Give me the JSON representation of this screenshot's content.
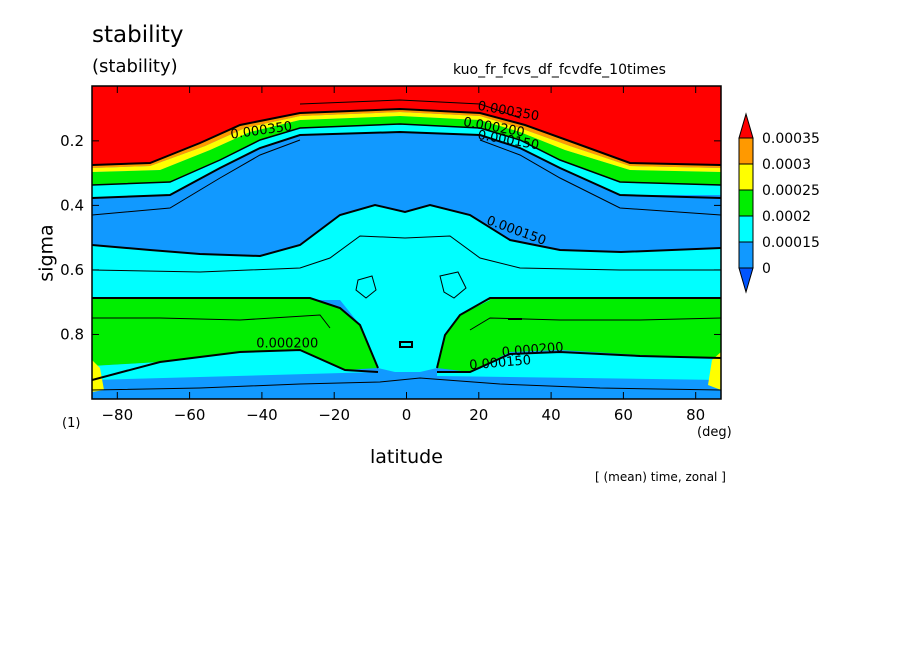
{
  "title": "stability",
  "subtitle": "(stability)",
  "run_name": "kuo_fr_fcvs_df_fcvdfe_10times",
  "footer": "[ (mean) time, zonal ]",
  "chart_data": {
    "type": "contour",
    "variable": "stability",
    "xlabel": "latitude",
    "xunit": "(deg)",
    "ylabel": "sigma",
    "yunit": "(1)",
    "xlim": [
      -87,
      87
    ],
    "ylim": [
      0.03,
      1.0
    ],
    "x_ticks": [
      -80,
      -60,
      -40,
      -20,
      0,
      20,
      40,
      60,
      80
    ],
    "y_ticks": [
      0.2,
      0.4,
      0.6,
      0.8
    ],
    "y_inverted": true,
    "legend": {
      "levels": [
        "0.00035",
        "0.0003",
        "0.00025",
        "0.0002",
        "0.00015",
        "0"
      ],
      "colors": {
        "above_0.00035": "#ff0000",
        "0.0003_0.00035": "#ff9900",
        "0.00025_0.0003": "#ffff00",
        "0.0002_0.00025": "#00ee00",
        "0.00015_0.0002": "#00ffff",
        "0_0.00015": "#1199ff",
        "below_0": "#0055ff"
      }
    },
    "contour_labels": [
      {
        "text": "0.000350",
        "lat": -40,
        "sigma": 0.18
      },
      {
        "text": "0.000350",
        "lat": 28,
        "sigma": 0.12
      },
      {
        "text": "0.000200",
        "lat": 24,
        "sigma": 0.17
      },
      {
        "text": "0.000150",
        "lat": 28,
        "sigma": 0.21
      },
      {
        "text": "0.000150",
        "lat": 30,
        "sigma": 0.49
      },
      {
        "text": "0.000200",
        "lat": -33,
        "sigma": 0.84
      },
      {
        "text": "0.000200",
        "lat": 35,
        "sigma": 0.86
      },
      {
        "text": "0.000150",
        "lat": 26,
        "sigma": 0.9
      }
    ]
  }
}
